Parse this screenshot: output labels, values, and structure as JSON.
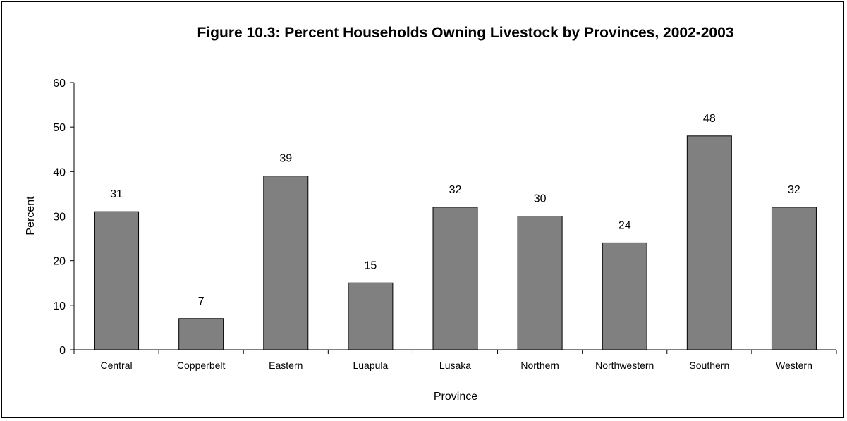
{
  "chart_data": {
    "type": "bar",
    "title": "Figure 10.3:  Percent Households Owning Livestock by Provinces, 2002-2003",
    "xlabel": "Province",
    "ylabel": "Percent",
    "categories": [
      "Central",
      "Copperbelt",
      "Eastern",
      "Luapula",
      "Lusaka",
      "Northern",
      "Northwestern",
      "Southern",
      "Western"
    ],
    "values": [
      31,
      7,
      39,
      15,
      32,
      30,
      24,
      48,
      32
    ],
    "ylim": [
      0,
      60
    ],
    "yticks": [
      0,
      10,
      20,
      30,
      40,
      50,
      60
    ],
    "grid": false,
    "legend": "none",
    "bar_color": "#808080",
    "bar_edge_color": "#000000",
    "data_labels": true
  }
}
